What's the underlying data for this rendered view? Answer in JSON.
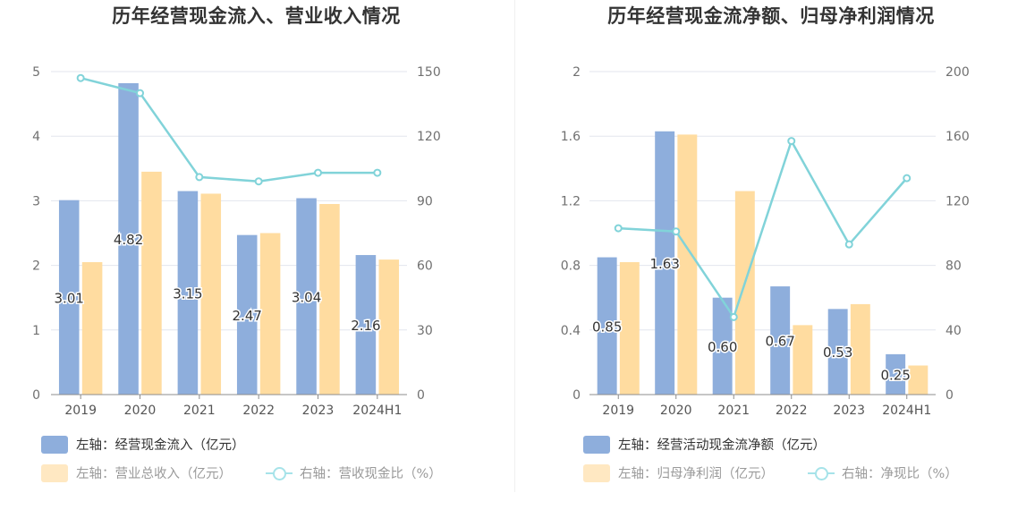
{
  "colors": {
    "bar_primary": "#8eaedc",
    "bar_secondary": "#ffdca0",
    "line": "#81d3d9",
    "line_legend": "#a6e3e9",
    "legend_text_active": "#333333",
    "legend_text_inactive": "#9a9a9a"
  },
  "charts": [
    {
      "title": "历年经营现金流入、营业收入情况",
      "legend": {
        "bar1": "左轴：经营现金流入（亿元）",
        "bar2": "左轴：营业总收入（亿元）",
        "line": "右轴：营收现金比（%）"
      }
    },
    {
      "title": "历年经营现金流净额、归母净利润情况",
      "legend": {
        "bar1": "左轴：经营活动现金流净额（亿元）",
        "bar2": "左轴：归母净利润（亿元）",
        "line": "右轴：净现比（%）"
      }
    }
  ],
  "chart_data": [
    {
      "type": "bar",
      "title": "历年经营现金流入、营业收入情况",
      "categories": [
        "2019",
        "2020",
        "2021",
        "2022",
        "2023",
        "2024H1"
      ],
      "left_axis": {
        "ylim": [
          0,
          5
        ],
        "ticks": [
          "0",
          "1",
          "2",
          "3",
          "4",
          "5"
        ]
      },
      "right_axis": {
        "ylim": [
          0,
          150
        ],
        "ticks": [
          "0",
          "30",
          "60",
          "90",
          "120",
          "150"
        ]
      },
      "series": [
        {
          "name": "左轴：经营现金流入（亿元）",
          "type": "bar",
          "axis": "left",
          "values": [
            3.01,
            4.82,
            3.15,
            2.47,
            3.04,
            2.16
          ],
          "labels": [
            "3.01",
            "4.82",
            "3.15",
            "2.47",
            "3.04",
            "2.16"
          ]
        },
        {
          "name": "左轴：营业总收入（亿元）",
          "type": "bar",
          "axis": "left",
          "values": [
            2.05,
            3.45,
            3.11,
            2.5,
            2.95,
            2.09
          ]
        },
        {
          "name": "右轴：营收现金比（%）",
          "type": "line",
          "axis": "right",
          "values": [
            147,
            140,
            101,
            99,
            103,
            103
          ]
        }
      ],
      "grid": true,
      "legend_position": "bottom-left"
    },
    {
      "type": "bar",
      "title": "历年经营现金流净额、归母净利润情况",
      "categories": [
        "2019",
        "2020",
        "2021",
        "2022",
        "2023",
        "2024H1"
      ],
      "left_axis": {
        "ylim": [
          0,
          2
        ],
        "ticks": [
          "0",
          "0.4",
          "0.8",
          "1.2",
          "1.6",
          "2"
        ]
      },
      "right_axis": {
        "ylim": [
          0,
          200
        ],
        "ticks": [
          "0",
          "40",
          "80",
          "120",
          "160",
          "200"
        ]
      },
      "series": [
        {
          "name": "左轴：经营活动现金流净额（亿元）",
          "type": "bar",
          "axis": "left",
          "values": [
            0.85,
            1.63,
            0.6,
            0.67,
            0.53,
            0.25
          ],
          "labels": [
            "0.85",
            "1.63",
            "0.60",
            "0.67",
            "0.53",
            "0.25"
          ]
        },
        {
          "name": "左轴：归母净利润（亿元）",
          "type": "bar",
          "axis": "left",
          "values": [
            0.82,
            1.61,
            1.26,
            0.43,
            0.56,
            0.18
          ]
        },
        {
          "name": "右轴：净现比（%）",
          "type": "line",
          "axis": "right",
          "values": [
            103,
            101,
            48,
            157,
            93,
            134
          ]
        }
      ],
      "grid": true,
      "legend_position": "bottom-left"
    }
  ]
}
